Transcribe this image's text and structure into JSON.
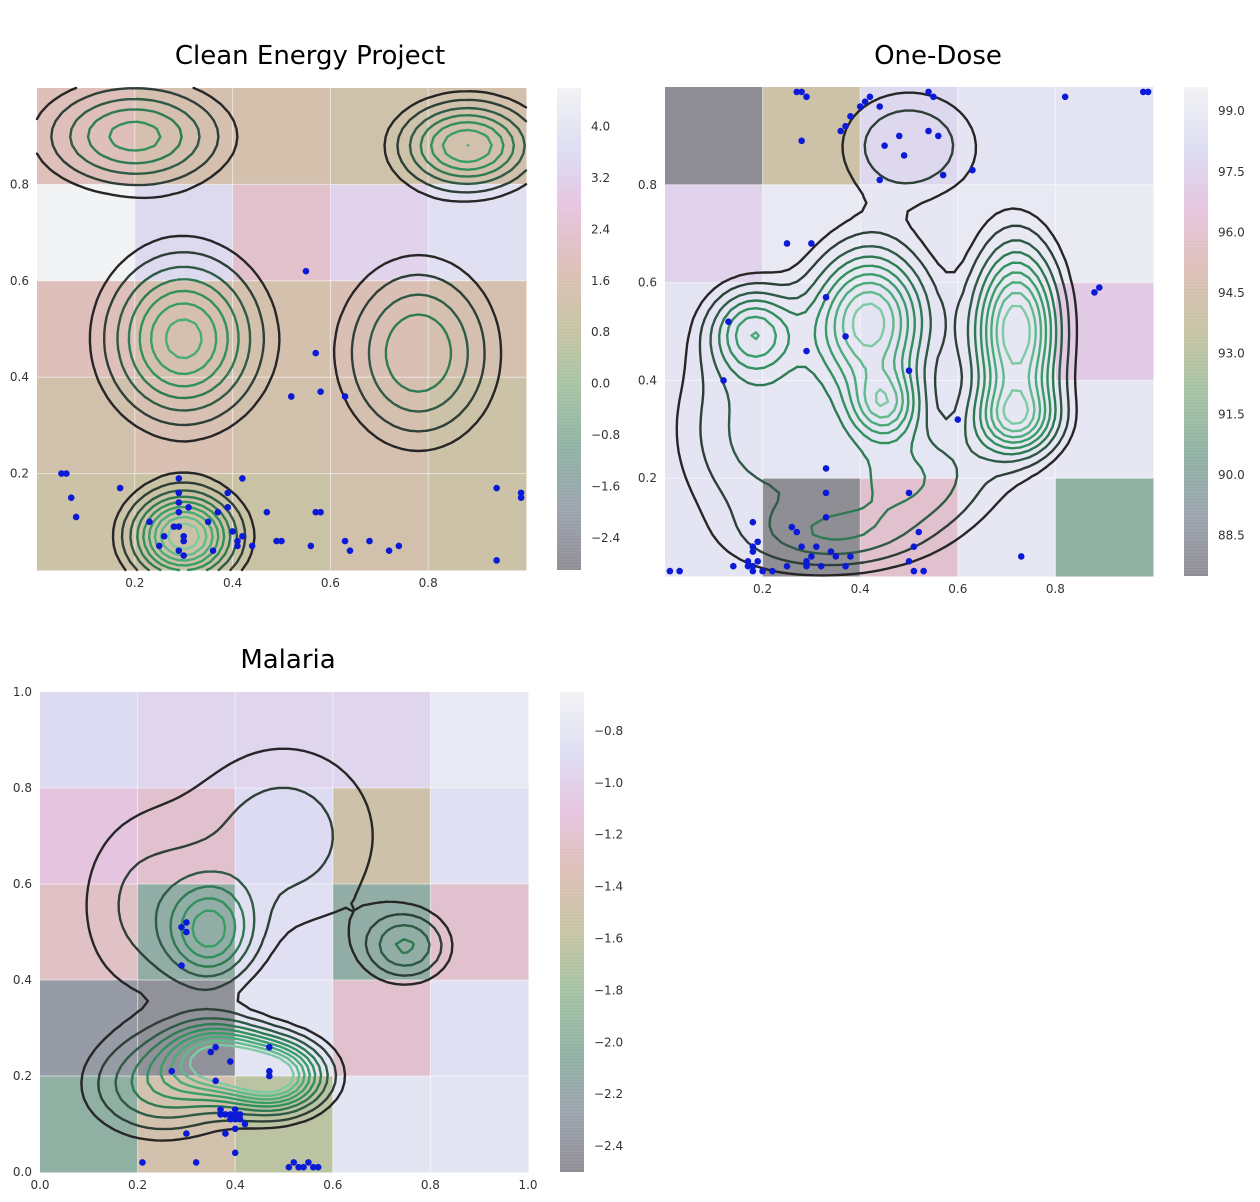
{
  "chart_data": [
    {
      "type": "heatmap",
      "title": "Clean Energy Project",
      "xlabel": "",
      "ylabel": "",
      "xlim": [
        0.0,
        1.0
      ],
      "ylim": [
        0.0,
        1.0
      ],
      "x_ticks": [
        "0.2",
        "0.4",
        "0.6",
        "0.8"
      ],
      "y_ticks": [
        "0.2",
        "0.4",
        "0.6",
        "0.8"
      ],
      "grid": true,
      "overlay": "kde-contours",
      "colorbar": {
        "min": -2.9,
        "max": 4.6,
        "ticks": [
          "−2.4",
          "−1.6",
          "−0.8",
          "0.0",
          "0.8",
          "1.6",
          "2.4",
          "3.2",
          "4.0"
        ],
        "values": [
          -2.4,
          -1.6,
          -0.8,
          0.0,
          0.8,
          1.6,
          2.4,
          3.2,
          4.0
        ]
      },
      "cells": [
        [
          1.9,
          1.5,
          1.4,
          1.2,
          1.3
        ],
        [
          4.6,
          3.5,
          2.3,
          3.3,
          3.8
        ],
        [
          1.9,
          1.5,
          1.4,
          1.7,
          1.5
        ],
        [
          1.3,
          1.6,
          1.3,
          1.5,
          1.1
        ],
        [
          1.1,
          1.0,
          1.0,
          1.3,
          1.1
        ]
      ],
      "kde_peaks": [
        {
          "x": 0.3,
          "y": 0.07,
          "h": 1.0,
          "sx": 0.07,
          "sy": 0.06
        },
        {
          "x": 0.3,
          "y": 0.48,
          "h": 0.75,
          "sx": 0.1,
          "sy": 0.11
        },
        {
          "x": 0.88,
          "y": 0.88,
          "h": 0.7,
          "sx": 0.09,
          "sy": 0.06
        },
        {
          "x": 0.2,
          "y": 0.9,
          "h": 0.55,
          "sx": 0.12,
          "sy": 0.07
        },
        {
          "x": 0.78,
          "y": 0.45,
          "h": 0.5,
          "sx": 0.1,
          "sy": 0.12
        }
      ],
      "points": [
        [
          0.05,
          0.2
        ],
        [
          0.06,
          0.2
        ],
        [
          0.07,
          0.15
        ],
        [
          0.08,
          0.11
        ],
        [
          0.17,
          0.17
        ],
        [
          0.23,
          0.1
        ],
        [
          0.25,
          0.05
        ],
        [
          0.26,
          0.07
        ],
        [
          0.28,
          0.09
        ],
        [
          0.29,
          0.19
        ],
        [
          0.29,
          0.16
        ],
        [
          0.29,
          0.14
        ],
        [
          0.29,
          0.12
        ],
        [
          0.29,
          0.09
        ],
        [
          0.3,
          0.06
        ],
        [
          0.29,
          0.04
        ],
        [
          0.3,
          0.03
        ],
        [
          0.3,
          0.07
        ],
        [
          0.31,
          0.13
        ],
        [
          0.35,
          0.1
        ],
        [
          0.36,
          0.04
        ],
        [
          0.37,
          0.12
        ],
        [
          0.39,
          0.16
        ],
        [
          0.39,
          0.13
        ],
        [
          0.4,
          0.08
        ],
        [
          0.41,
          0.06
        ],
        [
          0.42,
          0.07
        ],
        [
          0.41,
          0.05
        ],
        [
          0.42,
          0.19
        ],
        [
          0.44,
          0.05
        ],
        [
          0.47,
          0.12
        ],
        [
          0.49,
          0.06
        ],
        [
          0.5,
          0.06
        ],
        [
          0.52,
          0.36
        ],
        [
          0.56,
          0.05
        ],
        [
          0.57,
          0.12
        ],
        [
          0.58,
          0.12
        ],
        [
          0.57,
          0.45
        ],
        [
          0.58,
          0.37
        ],
        [
          0.55,
          0.62
        ],
        [
          0.63,
          0.36
        ],
        [
          0.63,
          0.06
        ],
        [
          0.64,
          0.04
        ],
        [
          0.68,
          0.06
        ],
        [
          0.72,
          0.04
        ],
        [
          0.74,
          0.05
        ],
        [
          0.94,
          0.02
        ],
        [
          0.94,
          0.17
        ],
        [
          0.99,
          0.15
        ],
        [
          0.99,
          0.16
        ]
      ]
    },
    {
      "type": "heatmap",
      "title": "One-Dose",
      "xlabel": "",
      "ylabel": "",
      "xlim": [
        0.0,
        1.0
      ],
      "ylim": [
        0.0,
        1.0
      ],
      "x_ticks": [
        "0.2",
        "0.4",
        "0.6",
        "0.8"
      ],
      "y_ticks": [
        "0.2",
        "0.4",
        "0.6",
        "0.8"
      ],
      "grid": true,
      "overlay": "kde-contours",
      "colorbar": {
        "min": 87.5,
        "max": 99.6,
        "ticks": [
          "88.5",
          "90.0",
          "91.5",
          "93.0",
          "94.5",
          "96.0",
          "97.5",
          "99.0"
        ],
        "values": [
          88.5,
          90.0,
          91.5,
          93.0,
          94.5,
          96.0,
          97.5,
          99.0
        ]
      },
      "cells": [
        [
          87.6,
          94.0,
          97.8,
          98.6,
          98.6
        ],
        [
          97.5,
          98.9,
          98.8,
          98.9,
          99.0
        ],
        [
          98.6,
          98.8,
          98.6,
          98.8,
          97.0
        ],
        [
          98.6,
          98.7,
          98.7,
          98.8,
          98.8
        ],
        [
          98.6,
          87.6,
          96.0,
          98.8,
          90.6
        ]
      ],
      "kde_peaks": [
        {
          "x": 0.42,
          "y": 0.52,
          "h": 0.95,
          "sx": 0.08,
          "sy": 0.1
        },
        {
          "x": 0.72,
          "y": 0.5,
          "h": 1.0,
          "sx": 0.06,
          "sy": 0.12
        },
        {
          "x": 0.45,
          "y": 0.35,
          "h": 0.6,
          "sx": 0.05,
          "sy": 0.05
        },
        {
          "x": 0.72,
          "y": 0.32,
          "h": 0.6,
          "sx": 0.06,
          "sy": 0.05
        },
        {
          "x": 0.18,
          "y": 0.5,
          "h": 0.55,
          "sx": 0.06,
          "sy": 0.06
        },
        {
          "x": 0.5,
          "y": 0.2,
          "h": 0.4,
          "sx": 0.12,
          "sy": 0.08
        },
        {
          "x": 0.2,
          "y": 0.3,
          "h": 0.35,
          "sx": 0.12,
          "sy": 0.15
        },
        {
          "x": 0.35,
          "y": 0.08,
          "h": 0.3,
          "sx": 0.12,
          "sy": 0.05
        },
        {
          "x": 0.5,
          "y": 0.88,
          "h": 0.3,
          "sx": 0.1,
          "sy": 0.08
        }
      ],
      "points": [
        [
          0.01,
          0.01
        ],
        [
          0.03,
          0.01
        ],
        [
          0.14,
          0.02
        ],
        [
          0.17,
          0.03
        ],
        [
          0.17,
          0.02
        ],
        [
          0.18,
          0.01
        ],
        [
          0.18,
          0.02
        ],
        [
          0.18,
          0.05
        ],
        [
          0.18,
          0.06
        ],
        [
          0.18,
          0.11
        ],
        [
          0.19,
          0.03
        ],
        [
          0.19,
          0.07
        ],
        [
          0.2,
          0.01
        ],
        [
          0.22,
          0.01
        ],
        [
          0.25,
          0.02
        ],
        [
          0.26,
          0.1
        ],
        [
          0.27,
          0.09
        ],
        [
          0.28,
          0.06
        ],
        [
          0.29,
          0.03
        ],
        [
          0.29,
          0.02
        ],
        [
          0.3,
          0.04
        ],
        [
          0.31,
          0.06
        ],
        [
          0.32,
          0.02
        ],
        [
          0.33,
          0.12
        ],
        [
          0.33,
          0.17
        ],
        [
          0.33,
          0.22
        ],
        [
          0.34,
          0.05
        ],
        [
          0.35,
          0.04
        ],
        [
          0.37,
          0.02
        ],
        [
          0.38,
          0.04
        ],
        [
          0.25,
          0.68
        ],
        [
          0.27,
          0.99
        ],
        [
          0.28,
          0.99
        ],
        [
          0.28,
          0.89
        ],
        [
          0.29,
          0.98
        ],
        [
          0.3,
          0.68
        ],
        [
          0.33,
          0.57
        ],
        [
          0.29,
          0.46
        ],
        [
          0.36,
          0.91
        ],
        [
          0.37,
          0.92
        ],
        [
          0.38,
          0.94
        ],
        [
          0.4,
          0.96
        ],
        [
          0.41,
          0.97
        ],
        [
          0.42,
          0.98
        ],
        [
          0.44,
          0.96
        ],
        [
          0.37,
          0.49
        ],
        [
          0.44,
          0.81
        ],
        [
          0.45,
          0.88
        ],
        [
          0.48,
          0.9
        ],
        [
          0.49,
          0.86
        ],
        [
          0.5,
          0.42
        ],
        [
          0.5,
          0.17
        ],
        [
          0.51,
          0.06
        ],
        [
          0.5,
          0.03
        ],
        [
          0.52,
          0.09
        ],
        [
          0.51,
          0.01
        ],
        [
          0.53,
          0.01
        ],
        [
          0.56,
          0.9
        ],
        [
          0.54,
          0.91
        ],
        [
          0.54,
          0.99
        ],
        [
          0.55,
          0.98
        ],
        [
          0.57,
          0.82
        ],
        [
          0.6,
          0.32
        ],
        [
          0.63,
          0.83
        ],
        [
          0.73,
          0.04
        ],
        [
          0.82,
          0.98
        ],
        [
          0.88,
          0.58
        ],
        [
          0.89,
          0.59
        ],
        [
          0.98,
          0.99
        ],
        [
          0.99,
          0.99
        ],
        [
          0.13,
          0.52
        ],
        [
          0.12,
          0.4
        ]
      ]
    },
    {
      "type": "heatmap",
      "title": "Malaria",
      "xlabel": "",
      "ylabel": "",
      "xlim": [
        0.0,
        1.0
      ],
      "ylim": [
        0.0,
        1.0
      ],
      "x_ticks": [
        "0.0",
        "0.2",
        "0.4",
        "0.6",
        "0.8",
        "1.0"
      ],
      "y_ticks": [
        "0.0",
        "0.2",
        "0.4",
        "0.6",
        "0.8",
        "1.0"
      ],
      "grid": true,
      "overlay": "kde-contours",
      "colorbar": {
        "min": -2.5,
        "max": -0.65,
        "ticks": [
          "−2.4",
          "−2.2",
          "−2.0",
          "−1.8",
          "−1.6",
          "−1.4",
          "−1.2",
          "−1.0",
          "−0.8"
        ],
        "values": [
          -2.4,
          -2.2,
          -2.0,
          -1.8,
          -1.6,
          -1.4,
          -1.2,
          -1.0,
          -0.8
        ]
      },
      "cells": [
        [
          -0.9,
          -0.95,
          -0.95,
          -0.95,
          -0.75
        ],
        [
          -1.1,
          -1.2,
          -0.9,
          -1.5,
          -0.85
        ],
        [
          -1.25,
          -2.1,
          -0.85,
          -2.1,
          -1.2
        ],
        [
          -2.35,
          -2.45,
          -0.8,
          -1.2,
          -0.85
        ],
        [
          -2.05,
          -1.45,
          -1.65,
          -0.8,
          -0.8
        ]
      ],
      "kde_peaks": [
        {
          "x": 0.48,
          "y": 0.2,
          "h": 1.0,
          "sx": 0.07,
          "sy": 0.05
        },
        {
          "x": 0.36,
          "y": 0.24,
          "h": 0.75,
          "sx": 0.07,
          "sy": 0.05
        },
        {
          "x": 0.35,
          "y": 0.5,
          "h": 0.55,
          "sx": 0.06,
          "sy": 0.07
        },
        {
          "x": 0.75,
          "y": 0.47,
          "h": 0.4,
          "sx": 0.06,
          "sy": 0.05
        },
        {
          "x": 0.25,
          "y": 0.18,
          "h": 0.45,
          "sx": 0.1,
          "sy": 0.07
        },
        {
          "x": 0.5,
          "y": 0.7,
          "h": 0.25,
          "sx": 0.15,
          "sy": 0.15
        },
        {
          "x": 0.2,
          "y": 0.55,
          "h": 0.2,
          "sx": 0.1,
          "sy": 0.15
        }
      ],
      "points": [
        [
          0.29,
          0.51
        ],
        [
          0.3,
          0.52
        ],
        [
          0.3,
          0.5
        ],
        [
          0.29,
          0.43
        ],
        [
          0.35,
          0.25
        ],
        [
          0.36,
          0.26
        ],
        [
          0.39,
          0.23
        ],
        [
          0.47,
          0.21
        ],
        [
          0.47,
          0.2
        ],
        [
          0.47,
          0.26
        ],
        [
          0.27,
          0.21
        ],
        [
          0.36,
          0.19
        ],
        [
          0.37,
          0.13
        ],
        [
          0.37,
          0.12
        ],
        [
          0.38,
          0.12
        ],
        [
          0.39,
          0.12
        ],
        [
          0.4,
          0.11
        ],
        [
          0.4,
          0.12
        ],
        [
          0.41,
          0.11
        ],
        [
          0.41,
          0.12
        ],
        [
          0.39,
          0.11
        ],
        [
          0.4,
          0.13
        ],
        [
          0.38,
          0.08
        ],
        [
          0.4,
          0.09
        ],
        [
          0.42,
          0.1
        ],
        [
          0.3,
          0.08
        ],
        [
          0.21,
          0.02
        ],
        [
          0.32,
          0.02
        ],
        [
          0.4,
          0.04
        ],
        [
          0.51,
          0.01
        ],
        [
          0.52,
          0.02
        ],
        [
          0.53,
          0.01
        ],
        [
          0.54,
          0.01
        ],
        [
          0.55,
          0.02
        ],
        [
          0.56,
          0.01
        ],
        [
          0.57,
          0.01
        ]
      ]
    }
  ]
}
